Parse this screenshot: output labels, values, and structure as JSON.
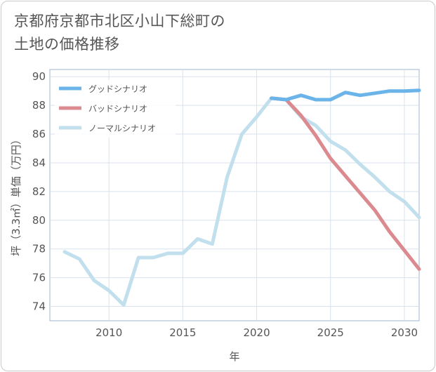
{
  "title_lines": [
    "京都府京都市北区小山下総町の",
    "土地の価格推移"
  ],
  "chart_data": {
    "type": "line",
    "title": "京都府京都市北区小山下総町の土地の価格推移",
    "xlabel": "年",
    "ylabel": "坪（3.3㎡）単価（万円）",
    "xlim": [
      2006,
      2031
    ],
    "ylim": [
      73,
      90.5
    ],
    "grid": true,
    "legend_position": "top-left",
    "x_ticks": [
      2010,
      2015,
      2020,
      2025,
      2030
    ],
    "y_ticks": [
      74,
      76,
      78,
      80,
      82,
      84,
      86,
      88,
      90
    ],
    "series": [
      {
        "name": "グッドシナリオ",
        "color": "#6ab4ea",
        "x": [
          2021,
          2022,
          2023,
          2024,
          2025,
          2026,
          2027,
          2028,
          2029,
          2030,
          2031
        ],
        "values": [
          88.5,
          88.4,
          88.7,
          88.4,
          88.4,
          88.9,
          88.7,
          88.85,
          89.0,
          89.0,
          89.05
        ]
      },
      {
        "name": "バッドシナリオ",
        "color": "#db8a8f",
        "x": [
          2021,
          2022,
          2023,
          2024,
          2025,
          2026,
          2027,
          2028,
          2029,
          2030,
          2031
        ],
        "values": [
          88.5,
          88.4,
          87.3,
          85.9,
          84.3,
          83.1,
          81.9,
          80.7,
          79.2,
          77.9,
          76.6
        ]
      },
      {
        "name": "ノーマルシナリオ",
        "color": "#c1dfed",
        "x": [
          2007,
          2008,
          2009,
          2010,
          2011,
          2012,
          2013,
          2014,
          2015,
          2016,
          2017,
          2018,
          2019,
          2020,
          2021,
          2022,
          2023,
          2024,
          2025,
          2026,
          2027,
          2028,
          2029,
          2030,
          2031
        ],
        "values": [
          77.8,
          77.3,
          75.8,
          75.1,
          74.1,
          77.4,
          77.4,
          77.7,
          77.7,
          78.7,
          78.35,
          83.0,
          86.0,
          87.2,
          88.5,
          88.4,
          87.2,
          86.6,
          85.5,
          84.9,
          83.9,
          83.0,
          82.0,
          81.3,
          80.2
        ]
      }
    ]
  }
}
